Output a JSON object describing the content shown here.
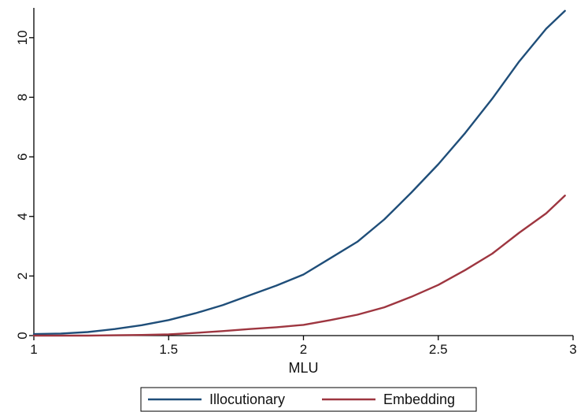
{
  "chart_data": {
    "type": "line",
    "xlabel": "MLU",
    "ylabel": "",
    "xlim": [
      1,
      3
    ],
    "ylim": [
      0,
      11
    ],
    "x_ticks": [
      1,
      1.5,
      2,
      2.5,
      3
    ],
    "x_tick_labels": [
      "1",
      "1.5",
      "2",
      "2.5",
      "3"
    ],
    "y_ticks": [
      0,
      2,
      4,
      6,
      8,
      10
    ],
    "y_tick_labels": [
      "0",
      "2",
      "4",
      "6",
      "8",
      "10"
    ],
    "grid": false,
    "legend_position": "bottom",
    "series": [
      {
        "name": "Illocutionary",
        "color": "#1f4e79",
        "x": [
          1.0,
          1.1,
          1.2,
          1.3,
          1.4,
          1.5,
          1.6,
          1.7,
          1.8,
          1.9,
          2.0,
          2.1,
          2.2,
          2.3,
          2.4,
          2.5,
          2.6,
          2.7,
          2.8,
          2.9,
          2.97
        ],
        "y": [
          0.05,
          0.07,
          0.12,
          0.22,
          0.35,
          0.52,
          0.75,
          1.02,
          1.35,
          1.68,
          2.05,
          2.6,
          3.15,
          3.9,
          4.8,
          5.75,
          6.8,
          7.95,
          9.2,
          10.3,
          10.9
        ]
      },
      {
        "name": "Embedding",
        "color": "#9e3640",
        "x": [
          1.0,
          1.1,
          1.2,
          1.3,
          1.4,
          1.5,
          1.6,
          1.7,
          1.8,
          1.9,
          2.0,
          2.1,
          2.2,
          2.3,
          2.4,
          2.5,
          2.6,
          2.7,
          2.8,
          2.9,
          2.97
        ],
        "y": [
          0.0,
          0.0,
          0.0,
          0.01,
          0.02,
          0.04,
          0.09,
          0.15,
          0.22,
          0.28,
          0.36,
          0.52,
          0.7,
          0.95,
          1.3,
          1.7,
          2.2,
          2.75,
          3.45,
          4.1,
          4.7
        ]
      }
    ]
  }
}
